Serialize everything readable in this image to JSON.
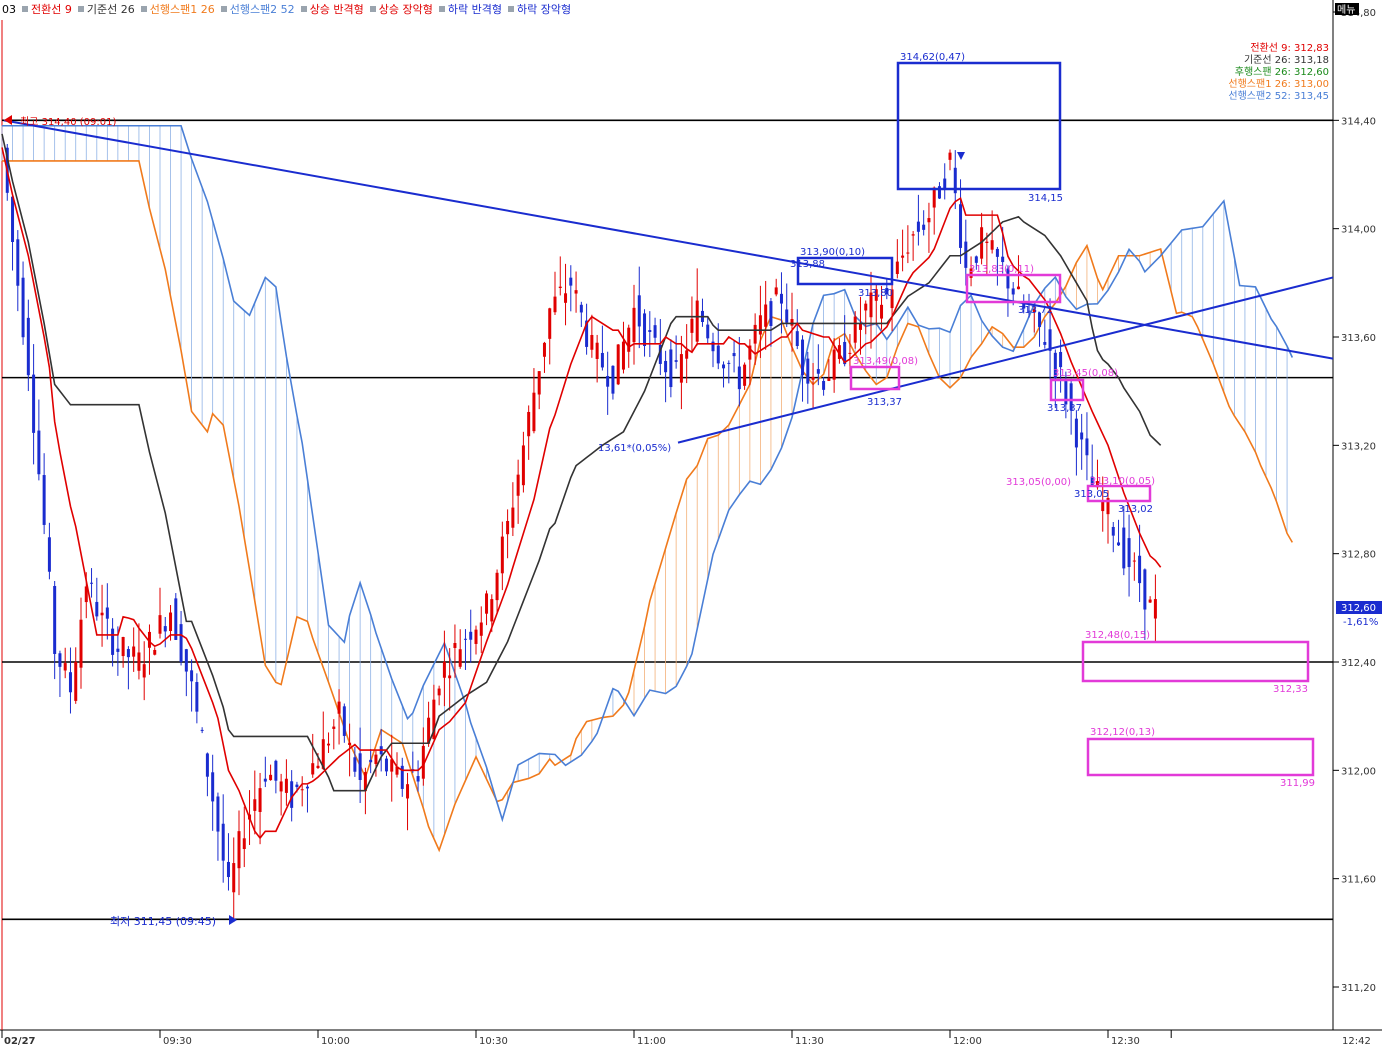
{
  "window_index": "03",
  "menu_icon_label": "메뉴",
  "legend_items": [
    {
      "label": "전환선 9",
      "color": "#e00000"
    },
    {
      "label": "기준선 26",
      "color": "#333333"
    },
    {
      "label": "선행스팬1 26",
      "color": "#f07a1c"
    },
    {
      "label": "선행스팬2 52",
      "color": "#4a7fd6"
    },
    {
      "label": "상승 반격형",
      "color": "#e00000"
    },
    {
      "label": "상승 장악형",
      "color": "#e00000"
    },
    {
      "label": "하락 반격형",
      "color": "#1a2ccf"
    },
    {
      "label": "하락 장악형",
      "color": "#1a2ccf"
    }
  ],
  "indicator_values": [
    {
      "text": "전환선 9: 312,83",
      "color": "#e00000"
    },
    {
      "text": "기준선 26: 313,18",
      "color": "#333333"
    },
    {
      "text": "후행스팬 26: 312,60",
      "color": "#1a8a1a"
    },
    {
      "text": "선행스팬1 26: 313,00",
      "color": "#f07a1c"
    },
    {
      "text": "선행스팬2 52: 313,45",
      "color": "#4a7fd6"
    }
  ],
  "current_price": "312,60",
  "current_change": "-1,61%",
  "annotations": {
    "high_label": "최고 314,40 (09:01)",
    "low_label": "최저 311,45 (09:45)",
    "box_high_top": "314,62(0,47)",
    "box_high_bottom": "314,15",
    "box_mid_top": "313,90(0,10)",
    "box_mid_left": "313,88",
    "box_mid_bottom": "313,80",
    "box_pink1_top": "313,49(0,08)",
    "box_pink1_bottom": "313,37",
    "box_pink2_top": "313,83(0,11)",
    "box_pink2_bottom": "313,72",
    "box_pink3_top": "313,45(0,08)",
    "box_pink3_bottom": "313,37",
    "box_pink4_top": "313,10(0,05)",
    "box_pink4_mid": "313,05(0,00)",
    "box_pink4_left": "313,05",
    "box_pink4_bottom": "313,02",
    "box_pink5_top": "312,48(0,15)",
    "box_pink5_bottom": "312,33",
    "box_pink6_top": "312,12(0,13)",
    "box_pink6_bottom": "311,99",
    "trend_low_label": "13,61*(0,05%)"
  },
  "chart_data": {
    "type": "candlestick",
    "title": "",
    "date": "02/27",
    "y_ticks": [
      "314,80",
      "314,40",
      "314,00",
      "313,60",
      "313,20",
      "312,80",
      "312,40",
      "312,00",
      "311,60",
      "311,20"
    ],
    "x_ticks": [
      "02/27",
      "09:30",
      "10:00",
      "10:30",
      "11:00",
      "11:30",
      "12:00",
      "12:30",
      "12:42"
    ],
    "ylim": [
      311.05,
      314.8
    ],
    "horizontal_lines": [
      314.4,
      313.45,
      312.4,
      311.45
    ],
    "high": {
      "value": 314.4,
      "time": "09:01"
    },
    "low": {
      "value": 311.45,
      "time": "09:45"
    },
    "indicators": {
      "tenkan_9": 312.83,
      "kijun_26": 313.18,
      "chikou_26": 312.6,
      "senkou1_26": 313.0,
      "senkou2_52": 313.45
    },
    "last_price": 312.6,
    "change_pct": -1.61,
    "grid": false,
    "legend_placement": "top"
  }
}
